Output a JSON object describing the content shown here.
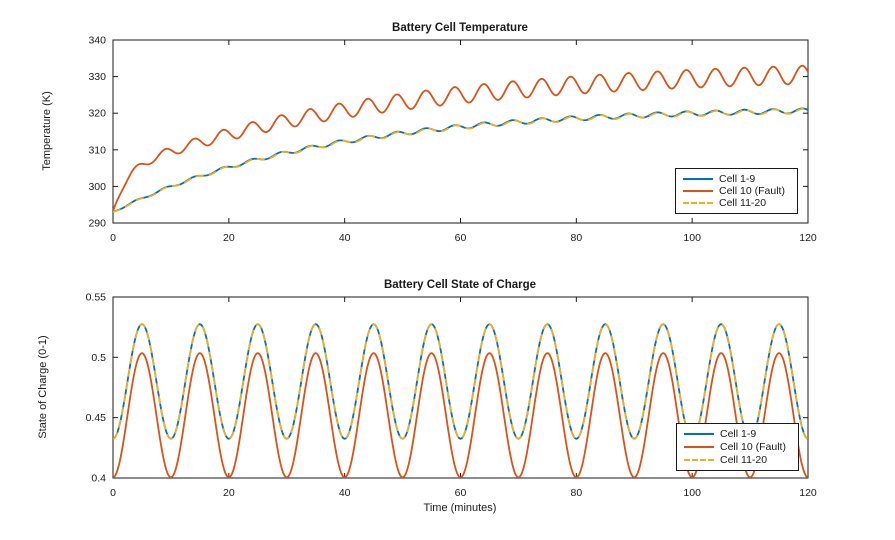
{
  "figure": {
    "background": "#ffffff",
    "axis_color": "#1a1a1a",
    "text_color": "#1a1a1a"
  },
  "chart_data": [
    {
      "type": "line",
      "title": "Battery Cell Temperature",
      "xlabel": "",
      "ylabel": "Temperature (K)",
      "xlim": [
        0,
        120
      ],
      "ylim": [
        290,
        340
      ],
      "xticks": [
        0,
        20,
        40,
        60,
        80,
        100,
        120
      ],
      "xtick_labels": [
        "0",
        "20",
        "40",
        "60",
        "80",
        "100",
        "120"
      ],
      "yticks": [
        290,
        300,
        310,
        320,
        330,
        340
      ],
      "ytick_labels": [
        "290",
        "300",
        "310",
        "320",
        "330",
        "340"
      ],
      "grid": false,
      "box": true,
      "legend_position": "inside-lower-right",
      "legend_entries": [
        "Cell 1-9",
        "Cell 10 (Fault)",
        "Cell 11-20"
      ],
      "series": [
        {
          "name": "Cell 1-9",
          "color": "#0072BD",
          "line_style": "solid",
          "line_width": 1.8,
          "model": {
            "base": 293,
            "terms": [
              {
                "a": 28.7,
                "tau": 36
              }
            ],
            "osc": {
              "amp": 0.65,
              "decay": 0.7,
              "tau": 25,
              "period": 5,
              "phase": 2.75
            }
          },
          "sample_t_min": [
            0,
            10,
            20,
            30,
            40,
            50,
            60,
            70,
            80,
            90,
            100,
            110,
            120
          ],
          "sample_mean_K": [
            293.0,
            300.0,
            305.2,
            309.2,
            312.3,
            314.5,
            316.3,
            317.6,
            318.6,
            319.3,
            319.9,
            320.3,
            320.7
          ]
        },
        {
          "name": "Cell 10 (Fault)",
          "color": "#D95319",
          "line_style": "solid",
          "line_width": 1.8,
          "model": {
            "base": 293,
            "terms": [
              {
                "a": 11,
                "tau": 2.2
              },
              {
                "a": 28.5,
                "tau": 45
              }
            ],
            "osc": {
              "amp": 2.5,
              "decay": 0.75,
              "tau": 25,
              "period": 5,
              "phase": 2.75
            }
          },
          "sample_t_min": [
            0,
            10,
            20,
            30,
            40,
            50,
            60,
            70,
            80,
            90,
            100,
            110,
            120
          ],
          "sample_mean_K": [
            293.0,
            309.6,
            314.2,
            317.9,
            320.8,
            323.1,
            325.0,
            326.5,
            327.7,
            328.6,
            329.4,
            330.0,
            330.5
          ]
        },
        {
          "name": "Cell 11-20",
          "color": "#EDB120",
          "line_style": "dashed",
          "line_width": 1.8,
          "model": {
            "base": 292.9,
            "terms": [
              {
                "a": 28.7,
                "tau": 36
              }
            ],
            "osc": {
              "amp": 0.65,
              "decay": 0.7,
              "tau": 25,
              "period": 5,
              "phase": 2.9
            }
          },
          "sample_t_min": [
            0,
            10,
            20,
            30,
            40,
            50,
            60,
            70,
            80,
            90,
            100,
            110,
            120
          ],
          "sample_mean_K": [
            292.9,
            299.9,
            305.1,
            309.1,
            312.2,
            314.4,
            316.2,
            317.5,
            318.5,
            319.2,
            319.8,
            320.2,
            320.6
          ]
        }
      ]
    },
    {
      "type": "line",
      "title": "Battery Cell State of Charge",
      "xlabel": "Time (minutes)",
      "ylabel": "State of Charge (0-1)",
      "xlim": [
        0,
        120
      ],
      "ylim": [
        0.4,
        0.55
      ],
      "xticks": [
        0,
        20,
        40,
        60,
        80,
        100,
        120
      ],
      "xtick_labels": [
        "0",
        "20",
        "40",
        "60",
        "80",
        "100",
        "120"
      ],
      "yticks": [
        0.4,
        0.45,
        0.5,
        0.55
      ],
      "ytick_labels": [
        "0.4",
        "0.45",
        "0.5",
        "0.55"
      ],
      "grid": false,
      "box": true,
      "legend_position": "inside-lower-right",
      "legend_entries": [
        "Cell 1-9",
        "Cell 10 (Fault)",
        "Cell 11-20"
      ],
      "series": [
        {
          "name": "Cell 1-9",
          "color": "#0072BD",
          "line_style": "solid",
          "line_width": 1.8,
          "model": {
            "base": 0.48,
            "terms": [],
            "osc": {
              "amp": 0.0475,
              "decay": 0,
              "tau": 1,
              "period": 10,
              "phase": 2.5
            }
          },
          "sample_t_min": [
            0,
            5,
            10,
            15,
            20,
            25,
            30,
            35,
            40,
            45,
            50,
            55,
            60,
            65,
            70,
            75,
            80,
            85,
            90,
            95,
            100,
            105,
            110,
            115,
            120
          ],
          "sample_values": [
            0.4325,
            0.5275,
            0.4325,
            0.5275,
            0.4325,
            0.5275,
            0.4325,
            0.5275,
            0.4325,
            0.5275,
            0.4325,
            0.5275,
            0.4325,
            0.5275,
            0.4325,
            0.5275,
            0.4325,
            0.5275,
            0.4325,
            0.5275,
            0.4325,
            0.5275,
            0.4325,
            0.5275,
            0.4325
          ]
        },
        {
          "name": "Cell 10 (Fault)",
          "color": "#D95319",
          "line_style": "solid",
          "line_width": 1.8,
          "model": {
            "base": 0.452,
            "terms": [],
            "osc": {
              "amp": 0.0515,
              "decay": 0,
              "tau": 1,
              "period": 10,
              "phase": 2.5
            }
          },
          "sample_t_min": [
            0,
            5,
            10,
            15,
            20,
            25,
            30,
            35,
            40,
            45,
            50,
            55,
            60,
            65,
            70,
            75,
            80,
            85,
            90,
            95,
            100,
            105,
            110,
            115,
            120
          ],
          "sample_values": [
            0.4005,
            0.5035,
            0.4005,
            0.5035,
            0.4005,
            0.5035,
            0.4005,
            0.5035,
            0.4005,
            0.5035,
            0.4005,
            0.5035,
            0.4005,
            0.5035,
            0.4005,
            0.5035,
            0.4005,
            0.5035,
            0.4005,
            0.5035,
            0.4005,
            0.5035,
            0.4005,
            0.5035,
            0.4005
          ]
        },
        {
          "name": "Cell 11-20",
          "color": "#EDB120",
          "line_style": "dashed",
          "line_width": 1.8,
          "model": {
            "base": 0.48,
            "terms": [],
            "osc": {
              "amp": 0.0475,
              "decay": 0,
              "tau": 1,
              "period": 10,
              "phase": 2.5
            }
          },
          "sample_t_min": [
            0,
            5,
            10,
            15,
            20,
            25,
            30,
            35,
            40,
            45,
            50,
            55,
            60,
            65,
            70,
            75,
            80,
            85,
            90,
            95,
            100,
            105,
            110,
            115,
            120
          ],
          "sample_values": [
            0.4325,
            0.5275,
            0.4325,
            0.5275,
            0.4325,
            0.5275,
            0.4325,
            0.5275,
            0.4325,
            0.5275,
            0.4325,
            0.5275,
            0.4325,
            0.5275,
            0.4325,
            0.5275,
            0.4325,
            0.5275,
            0.4325,
            0.5275,
            0.4325,
            0.5275,
            0.4325,
            0.5275,
            0.4325
          ]
        }
      ]
    }
  ]
}
